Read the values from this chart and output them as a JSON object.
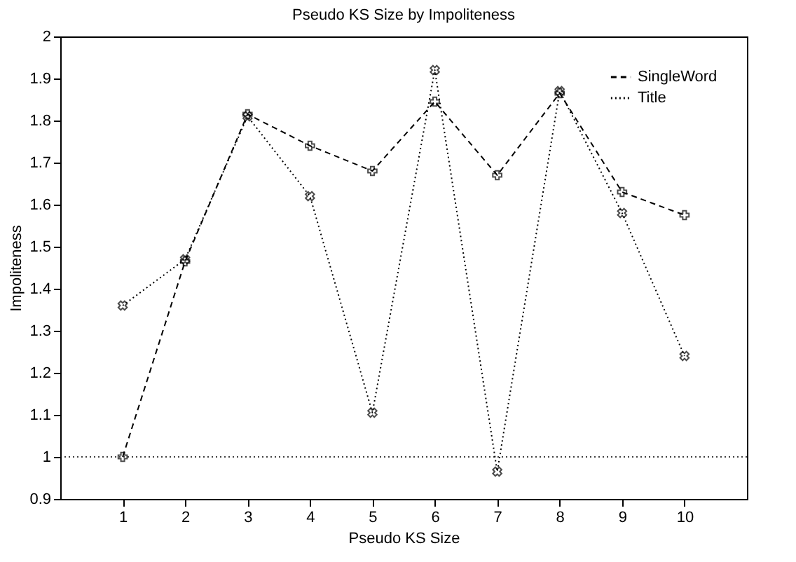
{
  "chart_data": {
    "type": "line",
    "title": "Pseudo KS Size by Impoliteness",
    "xlabel": "Pseudo KS Size",
    "ylabel": "Impoliteness",
    "x": [
      1,
      2,
      3,
      4,
      5,
      6,
      7,
      8,
      9,
      10
    ],
    "series": [
      {
        "name": "SingleWord",
        "color": "#000000",
        "line_style": "dashed",
        "marker": "cross",
        "values": [
          1.0,
          1.465,
          1.815,
          1.74,
          1.68,
          1.845,
          1.67,
          1.865,
          1.63,
          1.575
        ]
      },
      {
        "name": "Title",
        "color": "#000000",
        "line_style": "dotted",
        "marker": "cross",
        "values": [
          1.36,
          1.47,
          1.81,
          1.62,
          1.105,
          1.92,
          0.965,
          1.87,
          1.58,
          1.24
        ]
      }
    ],
    "xlim": [
      0,
      11
    ],
    "xticks": [
      1,
      2,
      3,
      4,
      5,
      6,
      7,
      8,
      9,
      10
    ],
    "ylim": [
      0.9,
      2
    ],
    "yticks": [
      0.9,
      1,
      1.1,
      1.2,
      1.3,
      1.4,
      1.5,
      1.6,
      1.7,
      1.8,
      1.9,
      2
    ],
    "ref_lines": [
      {
        "axis": "y",
        "value": 1,
        "line_style": "dotted",
        "color": "#000000"
      }
    ],
    "legend": "top right",
    "grid": false
  }
}
